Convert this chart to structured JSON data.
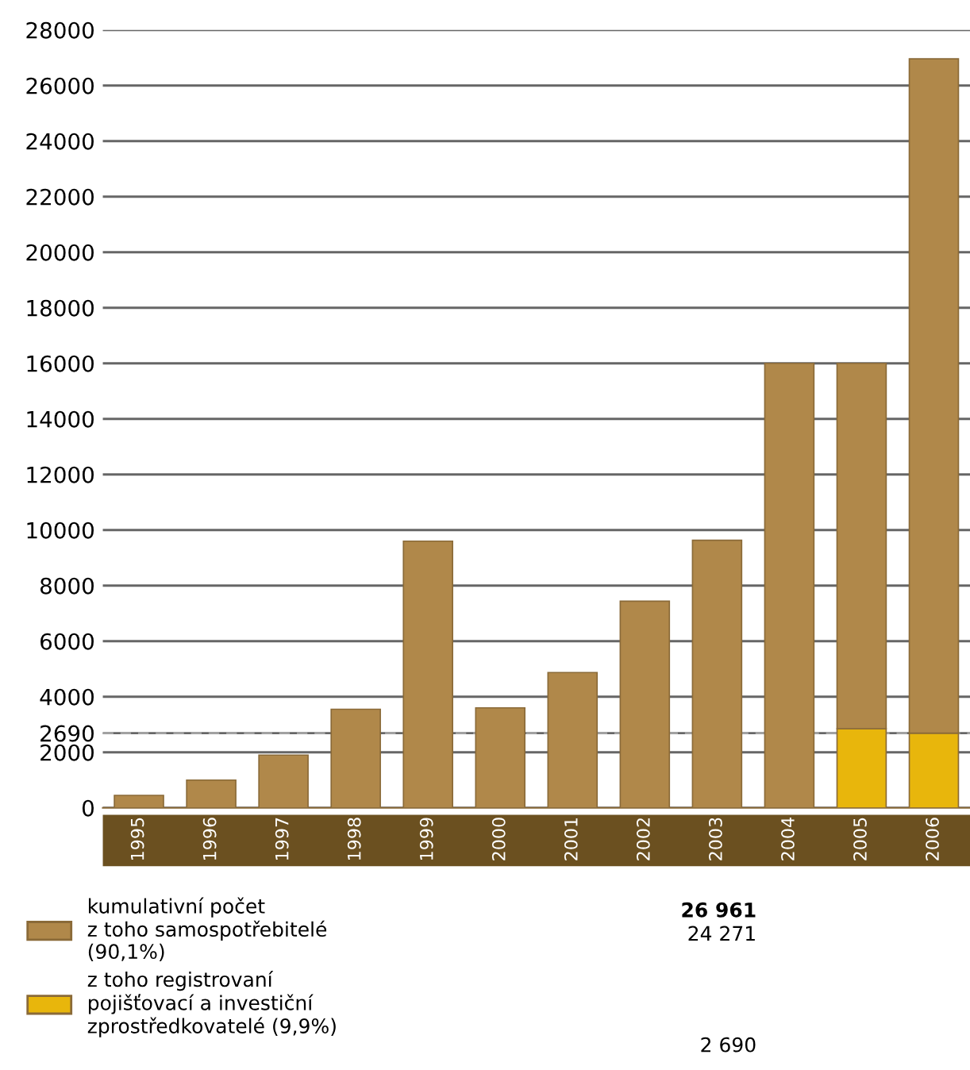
{
  "chart_data": {
    "type": "bar",
    "stacked": true,
    "categories": [
      "1995",
      "1996",
      "1997",
      "1998",
      "1999",
      "2000",
      "2001",
      "2002",
      "2003",
      "2004",
      "2005",
      "2006"
    ],
    "series": [
      {
        "name": "z toho registrovaní\npojišťovací a investiční\nzprostředkovatelé (9,9%)",
        "color": "#e8b60c",
        "values": [
          null,
          null,
          null,
          null,
          null,
          null,
          null,
          null,
          null,
          null,
          2850,
          2690
        ]
      },
      {
        "name": "kumulativní počet\nz toho samospotřebitelé\n(90,1%)",
        "color": "#b0884a",
        "values": [
          450,
          1000,
          1900,
          3550,
          9600,
          3600,
          4870,
          7440,
          9630,
          16000,
          13150,
          24271
        ]
      }
    ],
    "ylim": [
      0,
      28000
    ],
    "yticks": [
      0,
      2000,
      2690,
      4000,
      6000,
      8000,
      10000,
      12000,
      14000,
      16000,
      18000,
      20000,
      22000,
      24000,
      26000,
      28000
    ],
    "grid": "y",
    "ref_lines": [
      {
        "axis": "y",
        "value": 2690,
        "label": null,
        "color": "#aaaaaa",
        "line_style": "dashed"
      }
    ],
    "legend": "bottom",
    "annotations": [
      "26 961",
      "24 271",
      "2 690"
    ]
  }
}
